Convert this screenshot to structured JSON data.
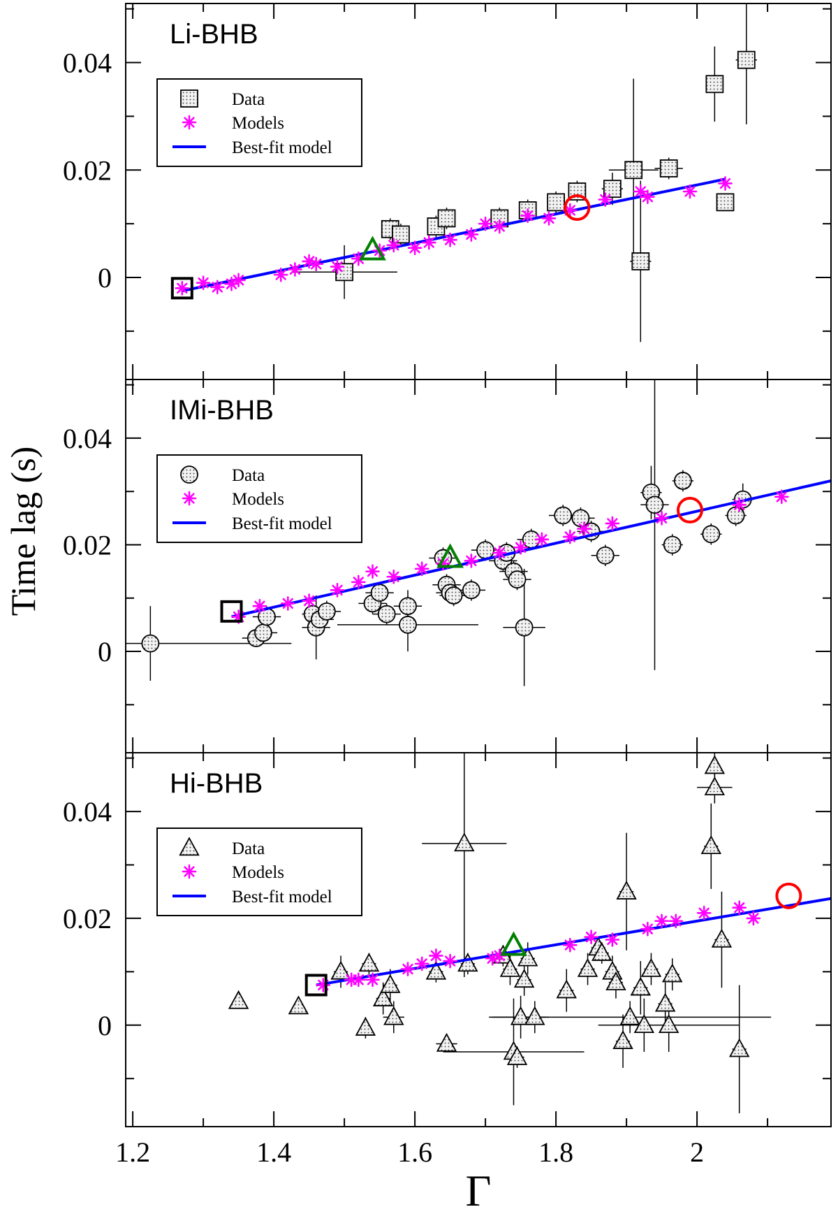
{
  "figure": {
    "ylabel": "Time lag (s)",
    "xlabel": "Γ",
    "x_ticks": [
      1.2,
      1.4,
      1.6,
      1.8,
      2.0
    ],
    "x_tick_labels": [
      "1.2",
      "1.4",
      "1.6",
      "1.8",
      "2"
    ],
    "y_ticks": [
      0,
      0.02,
      0.04
    ],
    "y_tick_labels": [
      "0",
      "0.02",
      "0.04"
    ]
  },
  "legend": {
    "data": "Data",
    "models": "Models",
    "best_fit": "Best-fit model"
  },
  "colors": {
    "data_fill": "#e6e6e6",
    "models": "#ff00ff",
    "fit_line": "#0000ff",
    "start_marker": "#000000",
    "mid_marker": "#008000",
    "end_marker": "#ff0000"
  },
  "chart_data": [
    {
      "type": "scatter",
      "title": "Li-BHB",
      "data_marker": "square",
      "xlabel": "Γ",
      "ylabel": "Time lag (s)",
      "xlim": [
        1.19,
        2.19
      ],
      "ylim": [
        -0.019,
        0.051
      ],
      "data": [
        {
          "x": 1.5,
          "y": 0.001,
          "xerr": 0.075,
          "yerr": 0.005
        },
        {
          "x": 1.565,
          "y": 0.009,
          "xerr": 0.01,
          "yerr": 0.002
        },
        {
          "x": 1.58,
          "y": 0.008,
          "xerr": 0.01,
          "yerr": 0.002
        },
        {
          "x": 1.63,
          "y": 0.0095,
          "xerr": 0.01,
          "yerr": 0.002
        },
        {
          "x": 1.645,
          "y": 0.011,
          "xerr": 0.01,
          "yerr": 0.002
        },
        {
          "x": 1.72,
          "y": 0.011,
          "xerr": 0.01,
          "yerr": 0.002
        },
        {
          "x": 1.76,
          "y": 0.0125,
          "xerr": 0.01,
          "yerr": 0.002
        },
        {
          "x": 1.8,
          "y": 0.014,
          "xerr": 0.01,
          "yerr": 0.002
        },
        {
          "x": 1.83,
          "y": 0.016,
          "xerr": 0.01,
          "yerr": 0.002
        },
        {
          "x": 1.88,
          "y": 0.0165,
          "xerr": 0.015,
          "yerr": 0.003
        },
        {
          "x": 1.91,
          "y": 0.02,
          "xerr": 0.035,
          "yerr": 0.017
        },
        {
          "x": 1.92,
          "y": 0.003,
          "xerr": 0.015,
          "yerr": 0.015
        },
        {
          "x": 1.96,
          "y": 0.0203,
          "xerr": 0.02,
          "yerr": 0.002
        },
        {
          "x": 2.025,
          "y": 0.036,
          "xerr": 0.01,
          "yerr": 0.007
        },
        {
          "x": 2.04,
          "y": 0.014,
          "xerr": 0.005,
          "yerr": 0.001
        },
        {
          "x": 2.07,
          "y": 0.0405,
          "xerr": 0.015,
          "yerr": 0.012
        }
      ],
      "models": [
        {
          "x": 1.27,
          "y": -0.002
        },
        {
          "x": 1.3,
          "y": -0.001
        },
        {
          "x": 1.32,
          "y": -0.0018
        },
        {
          "x": 1.34,
          "y": -0.0012
        },
        {
          "x": 1.35,
          "y": -0.0005
        },
        {
          "x": 1.41,
          "y": 0.0005
        },
        {
          "x": 1.43,
          "y": 0.0015
        },
        {
          "x": 1.45,
          "y": 0.003
        },
        {
          "x": 1.46,
          "y": 0.0025
        },
        {
          "x": 1.49,
          "y": 0.002
        },
        {
          "x": 1.52,
          "y": 0.0035
        },
        {
          "x": 1.55,
          "y": 0.005
        },
        {
          "x": 1.57,
          "y": 0.006
        },
        {
          "x": 1.6,
          "y": 0.0055
        },
        {
          "x": 1.62,
          "y": 0.0065
        },
        {
          "x": 1.65,
          "y": 0.007
        },
        {
          "x": 1.68,
          "y": 0.008
        },
        {
          "x": 1.7,
          "y": 0.01
        },
        {
          "x": 1.72,
          "y": 0.0095
        },
        {
          "x": 1.76,
          "y": 0.0115
        },
        {
          "x": 1.79,
          "y": 0.011
        },
        {
          "x": 1.82,
          "y": 0.0125
        },
        {
          "x": 1.87,
          "y": 0.0145
        },
        {
          "x": 1.92,
          "y": 0.016
        },
        {
          "x": 1.93,
          "y": 0.015
        },
        {
          "x": 1.99,
          "y": 0.016
        },
        {
          "x": 2.04,
          "y": 0.0175
        }
      ],
      "fit": {
        "x": [
          1.27,
          2.04
        ],
        "y": [
          -0.0025,
          0.0183
        ]
      },
      "markers": {
        "start": {
          "x": 1.27,
          "y": -0.002
        },
        "mid": {
          "x": 1.54,
          "y": 0.005
        },
        "end": {
          "x": 1.83,
          "y": 0.013
        }
      }
    },
    {
      "type": "scatter",
      "title": "IMi-BHB",
      "data_marker": "circle",
      "xlabel": "Γ",
      "ylabel": "Time lag (s)",
      "xlim": [
        1.19,
        2.19
      ],
      "ylim": [
        -0.019,
        0.051
      ],
      "data": [
        {
          "x": 1.225,
          "y": 0.0015,
          "xerr": 0.2,
          "yerr": 0.007
        },
        {
          "x": 1.375,
          "y": 0.0025,
          "xerr": 0.02,
          "yerr": 0.001
        },
        {
          "x": 1.385,
          "y": 0.0035,
          "xerr": 0.02,
          "yerr": 0.002
        },
        {
          "x": 1.39,
          "y": 0.0065,
          "xerr": 0.02,
          "yerr": 0.002
        },
        {
          "x": 1.455,
          "y": 0.007,
          "xerr": 0.015,
          "yerr": 0.002
        },
        {
          "x": 1.46,
          "y": 0.0045,
          "xerr": 0.02,
          "yerr": 0.006
        },
        {
          "x": 1.465,
          "y": 0.006,
          "xerr": 0.02,
          "yerr": 0.002
        },
        {
          "x": 1.475,
          "y": 0.0075,
          "xerr": 0.02,
          "yerr": 0.002
        },
        {
          "x": 1.54,
          "y": 0.009,
          "xerr": 0.02,
          "yerr": 0.002
        },
        {
          "x": 1.55,
          "y": 0.011,
          "xerr": 0.02,
          "yerr": 0.002
        },
        {
          "x": 1.56,
          "y": 0.007,
          "xerr": 0.02,
          "yerr": 0.002
        },
        {
          "x": 1.59,
          "y": 0.0085,
          "xerr": 0.02,
          "yerr": 0.003
        },
        {
          "x": 1.59,
          "y": 0.005,
          "xerr": 0.1,
          "yerr": 0.005
        },
        {
          "x": 1.64,
          "y": 0.0175,
          "xerr": 0.02,
          "yerr": 0.002
        },
        {
          "x": 1.645,
          "y": 0.0125,
          "xerr": 0.02,
          "yerr": 0.002
        },
        {
          "x": 1.65,
          "y": 0.011,
          "xerr": 0.02,
          "yerr": 0.002
        },
        {
          "x": 1.655,
          "y": 0.0105,
          "xerr": 0.02,
          "yerr": 0.002
        },
        {
          "x": 1.68,
          "y": 0.0115,
          "xerr": 0.02,
          "yerr": 0.002
        },
        {
          "x": 1.7,
          "y": 0.019,
          "xerr": 0.02,
          "yerr": 0.002
        },
        {
          "x": 1.725,
          "y": 0.017,
          "xerr": 0.02,
          "yerr": 0.002
        },
        {
          "x": 1.73,
          "y": 0.0185,
          "xerr": 0.02,
          "yerr": 0.002
        },
        {
          "x": 1.74,
          "y": 0.015,
          "xerr": 0.02,
          "yerr": 0.002
        },
        {
          "x": 1.745,
          "y": 0.0135,
          "xerr": 0.02,
          "yerr": 0.002
        },
        {
          "x": 1.755,
          "y": 0.0045,
          "xerr": 0.03,
          "yerr": 0.011
        },
        {
          "x": 1.765,
          "y": 0.021,
          "xerr": 0.02,
          "yerr": 0.002
        },
        {
          "x": 1.81,
          "y": 0.0255,
          "xerr": 0.02,
          "yerr": 0.002
        },
        {
          "x": 1.835,
          "y": 0.025,
          "xerr": 0.02,
          "yerr": 0.002
        },
        {
          "x": 1.85,
          "y": 0.0225,
          "xerr": 0.02,
          "yerr": 0.002
        },
        {
          "x": 1.87,
          "y": 0.018,
          "xerr": 0.02,
          "yerr": 0.002
        },
        {
          "x": 1.935,
          "y": 0.0298,
          "xerr": 0.015,
          "yerr": 0.005
        },
        {
          "x": 1.94,
          "y": 0.0275,
          "xerr": 0.02,
          "yerr": 0.031
        },
        {
          "x": 1.965,
          "y": 0.02,
          "xerr": 0.015,
          "yerr": 0.002
        },
        {
          "x": 1.98,
          "y": 0.032,
          "xerr": 0.015,
          "yerr": 0.002
        },
        {
          "x": 2.02,
          "y": 0.022,
          "xerr": 0.015,
          "yerr": 0.002
        },
        {
          "x": 2.055,
          "y": 0.0255,
          "xerr": 0.015,
          "yerr": 0.002
        },
        {
          "x": 2.065,
          "y": 0.0285,
          "xerr": 0.015,
          "yerr": 0.003
        }
      ],
      "models": [
        {
          "x": 1.35,
          "y": 0.0065
        },
        {
          "x": 1.38,
          "y": 0.0085
        },
        {
          "x": 1.42,
          "y": 0.009
        },
        {
          "x": 1.45,
          "y": 0.0095
        },
        {
          "x": 1.49,
          "y": 0.0115
        },
        {
          "x": 1.52,
          "y": 0.013
        },
        {
          "x": 1.54,
          "y": 0.015
        },
        {
          "x": 1.57,
          "y": 0.014
        },
        {
          "x": 1.61,
          "y": 0.0155
        },
        {
          "x": 1.64,
          "y": 0.0165
        },
        {
          "x": 1.68,
          "y": 0.017
        },
        {
          "x": 1.72,
          "y": 0.0185
        },
        {
          "x": 1.75,
          "y": 0.0195
        },
        {
          "x": 1.78,
          "y": 0.021
        },
        {
          "x": 1.82,
          "y": 0.0215
        },
        {
          "x": 1.84,
          "y": 0.023
        },
        {
          "x": 1.88,
          "y": 0.024
        },
        {
          "x": 1.95,
          "y": 0.025
        },
        {
          "x": 2.06,
          "y": 0.0275
        },
        {
          "x": 2.12,
          "y": 0.029
        }
      ],
      "fit": {
        "x": [
          1.34,
          2.19
        ],
        "y": [
          0.0065,
          0.032
        ]
      },
      "markers": {
        "start": {
          "x": 1.34,
          "y": 0.0075
        },
        "mid": {
          "x": 1.65,
          "y": 0.0175
        },
        "end": {
          "x": 1.99,
          "y": 0.0265
        }
      }
    },
    {
      "type": "scatter",
      "title": "Hi-BHB",
      "data_marker": "triangle",
      "xlabel": "Γ",
      "ylabel": "Time lag (s)",
      "xlim": [
        1.19,
        2.19
      ],
      "ylim": [
        -0.019,
        0.051
      ],
      "data": [
        {
          "x": 1.35,
          "y": 0.0045,
          "xerr": 0.0,
          "yerr": 0.0
        },
        {
          "x": 1.435,
          "y": 0.0035,
          "xerr": 0.005,
          "yerr": 0.0
        },
        {
          "x": 1.495,
          "y": 0.01,
          "xerr": 0.01,
          "yerr": 0.003
        },
        {
          "x": 1.53,
          "y": -0.0005,
          "xerr": 0.005,
          "yerr": 0.002
        },
        {
          "x": 1.535,
          "y": 0.0115,
          "xerr": 0.01,
          "yerr": 0.002
        },
        {
          "x": 1.555,
          "y": 0.005,
          "xerr": 0.01,
          "yerr": 0.003
        },
        {
          "x": 1.565,
          "y": 0.0075,
          "xerr": 0.01,
          "yerr": 0.003
        },
        {
          "x": 1.57,
          "y": 0.0015,
          "xerr": 0.015,
          "yerr": 0.003
        },
        {
          "x": 1.63,
          "y": 0.01,
          "xerr": 0.01,
          "yerr": 0.002
        },
        {
          "x": 1.645,
          "y": -0.0035,
          "xerr": 0.015,
          "yerr": 0.001
        },
        {
          "x": 1.67,
          "y": 0.034,
          "xerr": 0.06,
          "yerr": 0.025
        },
        {
          "x": 1.675,
          "y": 0.0115,
          "xerr": 0.01,
          "yerr": 0.002
        },
        {
          "x": 1.725,
          "y": 0.013,
          "xerr": 0.01,
          "yerr": 0.002
        },
        {
          "x": 1.735,
          "y": 0.0105,
          "xerr": 0.01,
          "yerr": 0.003
        },
        {
          "x": 1.74,
          "y": -0.005,
          "xerr": 0.1,
          "yerr": 0.01
        },
        {
          "x": 1.745,
          "y": -0.006,
          "xerr": 0.01,
          "yerr": 0.002
        },
        {
          "x": 1.75,
          "y": 0.0015,
          "xerr": 0.04,
          "yerr": 0.004
        },
        {
          "x": 1.755,
          "y": 0.0085,
          "xerr": 0.01,
          "yerr": 0.003
        },
        {
          "x": 1.76,
          "y": 0.0125,
          "xerr": 0.01,
          "yerr": 0.003
        },
        {
          "x": 1.77,
          "y": 0.0015,
          "xerr": 0.015,
          "yerr": 0.003
        },
        {
          "x": 1.815,
          "y": 0.0065,
          "xerr": 0.01,
          "yerr": 0.004
        },
        {
          "x": 1.845,
          "y": 0.0105,
          "xerr": 0.01,
          "yerr": 0.003
        },
        {
          "x": 1.86,
          "y": 0.0145,
          "xerr": 0.01,
          "yerr": 0.002
        },
        {
          "x": 1.865,
          "y": 0.0135,
          "xerr": 0.01,
          "yerr": 0.002
        },
        {
          "x": 1.88,
          "y": 0.01,
          "xerr": 0.01,
          "yerr": 0.003
        },
        {
          "x": 1.885,
          "y": 0.008,
          "xerr": 0.01,
          "yerr": 0.003
        },
        {
          "x": 1.895,
          "y": -0.003,
          "xerr": 0.01,
          "yerr": 0.005
        },
        {
          "x": 1.9,
          "y": 0.025,
          "xerr": 0.01,
          "yerr": 0.011
        },
        {
          "x": 1.905,
          "y": 0.0015,
          "xerr": 0.2,
          "yerr": 0.003
        },
        {
          "x": 1.92,
          "y": 0.007,
          "xerr": 0.01,
          "yerr": 0.005
        },
        {
          "x": 1.925,
          "y": 0.0,
          "xerr": 0.02,
          "yerr": 0.005
        },
        {
          "x": 1.935,
          "y": 0.0105,
          "xerr": 0.01,
          "yerr": 0.003
        },
        {
          "x": 1.955,
          "y": 0.004,
          "xerr": 0.01,
          "yerr": 0.004
        },
        {
          "x": 1.96,
          "y": 0.0,
          "xerr": 0.1,
          "yerr": 0.005
        },
        {
          "x": 1.965,
          "y": 0.0095,
          "xerr": 0.01,
          "yerr": 0.003
        },
        {
          "x": 2.02,
          "y": 0.0335,
          "xerr": 0.01,
          "yerr": 0.008
        },
        {
          "x": 2.025,
          "y": 0.0485,
          "xerr": 0.005,
          "yerr": 0.003
        },
        {
          "x": 2.025,
          "y": 0.0445,
          "xerr": 0.025,
          "yerr": 0.003
        },
        {
          "x": 2.035,
          "y": 0.016,
          "xerr": 0.01,
          "yerr": 0.009
        },
        {
          "x": 2.06,
          "y": -0.0045,
          "xerr": 0.01,
          "yerr": 0.012
        }
      ],
      "models": [
        {
          "x": 1.47,
          "y": 0.0075
        },
        {
          "x": 1.51,
          "y": 0.0085
        },
        {
          "x": 1.52,
          "y": 0.0085
        },
        {
          "x": 1.54,
          "y": 0.0085
        },
        {
          "x": 1.59,
          "y": 0.0105
        },
        {
          "x": 1.61,
          "y": 0.0115
        },
        {
          "x": 1.63,
          "y": 0.013
        },
        {
          "x": 1.65,
          "y": 0.012
        },
        {
          "x": 1.71,
          "y": 0.0125
        },
        {
          "x": 1.72,
          "y": 0.013
        },
        {
          "x": 1.82,
          "y": 0.015
        },
        {
          "x": 1.85,
          "y": 0.0165
        },
        {
          "x": 1.88,
          "y": 0.016
        },
        {
          "x": 1.93,
          "y": 0.018
        },
        {
          "x": 1.95,
          "y": 0.0195
        },
        {
          "x": 1.97,
          "y": 0.0195
        },
        {
          "x": 2.01,
          "y": 0.021
        },
        {
          "x": 2.06,
          "y": 0.022
        },
        {
          "x": 2.08,
          "y": 0.02
        }
      ],
      "fit": {
        "x": [
          1.46,
          2.19
        ],
        "y": [
          0.0075,
          0.0237
        ]
      },
      "markers": {
        "start": {
          "x": 1.46,
          "y": 0.0075
        },
        "mid": {
          "x": 1.74,
          "y": 0.0148
        },
        "end": {
          "x": 2.13,
          "y": 0.0242
        }
      }
    }
  ]
}
